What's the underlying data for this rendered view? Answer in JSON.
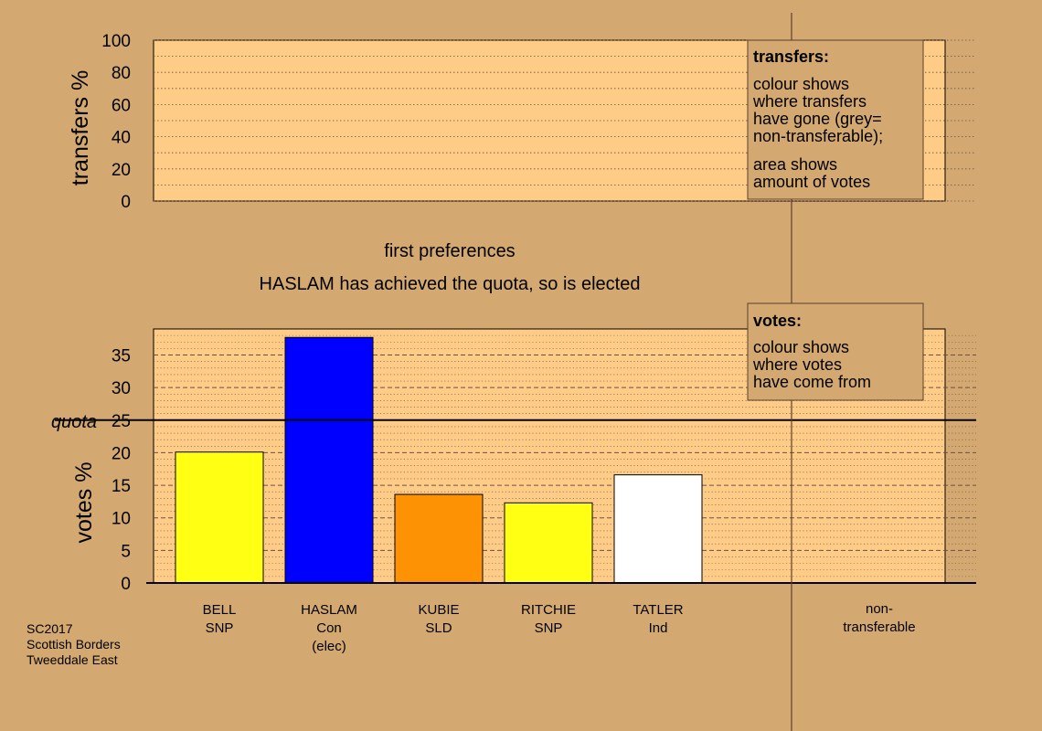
{
  "chart_data": [
    {
      "type": "bar",
      "panel": "transfers",
      "ylabel": "transfers %",
      "ylim": [
        0,
        100
      ],
      "yticks": [
        0,
        20,
        40,
        60,
        80,
        100
      ],
      "categories": [],
      "values": [],
      "grid": true
    },
    {
      "type": "bar",
      "panel": "votes",
      "ylabel": "votes %",
      "ylim": [
        0,
        39
      ],
      "yticks": [
        0,
        5,
        10,
        15,
        20,
        25,
        30,
        35
      ],
      "quota": 25,
      "quota_label": "quota",
      "categories": [
        {
          "name": "BELL",
          "party": "SNP",
          "note": ""
        },
        {
          "name": "HASLAM",
          "party": "Con",
          "note": "(elec)"
        },
        {
          "name": "KUBIE",
          "party": "SLD",
          "note": ""
        },
        {
          "name": "RITCHIE",
          "party": "SNP",
          "note": ""
        },
        {
          "name": "TATLER",
          "party": "Ind",
          "note": ""
        }
      ],
      "values": [
        20.1,
        37.7,
        13.6,
        12.3,
        16.6
      ],
      "colors": [
        "#ffff13",
        "#0000ff",
        "#fd9205",
        "#ffff13",
        "#ffffff"
      ],
      "grid": true
    }
  ],
  "captions": {
    "stage": "first preferences",
    "message": "HASLAM has achieved the quota, so is elected"
  },
  "legends": {
    "transfers": {
      "title": "transfers:",
      "lines1": [
        "colour shows",
        "where transfers",
        "have gone (grey=",
        "non-transferable);"
      ],
      "lines2": [
        "area shows",
        "amount of votes"
      ]
    },
    "votes": {
      "title": "votes:",
      "lines1": [
        "colour shows",
        "where votes",
        "have come from"
      ]
    }
  },
  "nontransferable_label": [
    "non-",
    "transferable"
  ],
  "footer": [
    "SC2017",
    "Scottish Borders",
    "Tweeddale East"
  ],
  "colors": {
    "background": "#d4a971",
    "panel": "#ffcc88"
  }
}
